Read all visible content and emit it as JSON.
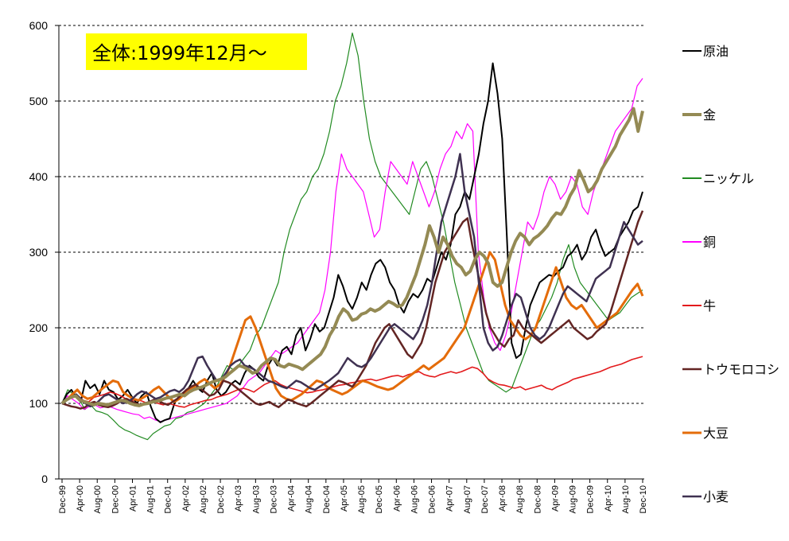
{
  "chart_data": {
    "type": "line",
    "title": "全体:1999年12月～",
    "ylim": [
      0,
      600
    ],
    "yticks": [
      0,
      100,
      200,
      300,
      400,
      500,
      600
    ],
    "grid": "horizontal dashed",
    "legend_placement": "right",
    "x_start": "Dec-99",
    "x_tick_labels": [
      "Dec-99",
      "Apr-00",
      "Aug-00",
      "Dec-00",
      "Apr-01",
      "Aug-01",
      "Dec-01",
      "Apr-02",
      "Aug-02",
      "Dec-02",
      "Apr-03",
      "Aug-03",
      "Dec-03",
      "Apr-04",
      "Aug-04",
      "Dec-04",
      "Apr-05",
      "Aug-05",
      "Dec-05",
      "Apr-06",
      "Aug-06",
      "Dec-06",
      "Apr-07",
      "Aug-07",
      "Dec-07",
      "Apr-08",
      "Aug-08",
      "Dec-08",
      "Apr-09",
      "Aug-09",
      "Dec-09",
      "Apr-10",
      "Aug-10",
      "Dec-10"
    ],
    "series": [
      {
        "name": "原油",
        "color": "#000000",
        "width": 2,
        "values": [
          100,
          112,
          118,
          108,
          102,
          130,
          120,
          125,
          112,
          130,
          118,
          115,
          105,
          110,
          118,
          108,
          100,
          110,
          115,
          95,
          80,
          75,
          78,
          80,
          100,
          110,
          115,
          120,
          130,
          120,
          115,
          130,
          140,
          118,
          110,
          115,
          125,
          130,
          125,
          140,
          150,
          145,
          135,
          130,
          150,
          160,
          150,
          170,
          175,
          165,
          190,
          200,
          170,
          185,
          205,
          195,
          200,
          220,
          240,
          270,
          255,
          235,
          225,
          240,
          260,
          250,
          270,
          285,
          290,
          280,
          260,
          250,
          230,
          220,
          235,
          245,
          240,
          250,
          265,
          260,
          280,
          300,
          290,
          310,
          350,
          360,
          380,
          370,
          400,
          430,
          470,
          500,
          550,
          510,
          450,
          320,
          180,
          160,
          165,
          200,
          230,
          245,
          260,
          265,
          270,
          268,
          275,
          280,
          295,
          300,
          310,
          290,
          300,
          320,
          330,
          310,
          295,
          300,
          305,
          320,
          330,
          340,
          355,
          360,
          380
        ]
      },
      {
        "name": "金",
        "color": "#948A54",
        "width": 4,
        "values": [
          100,
          105,
          108,
          110,
          104,
          102,
          100,
          98,
          100,
          99,
          98,
          100,
          102,
          104,
          103,
          100,
          98,
          97,
          99,
          100,
          102,
          103,
          105,
          107,
          108,
          110,
          112,
          110,
          115,
          118,
          120,
          122,
          125,
          128,
          130,
          132,
          135,
          140,
          145,
          150,
          148,
          145,
          140,
          142,
          150,
          155,
          160,
          158,
          150,
          148,
          152,
          150,
          148,
          145,
          150,
          155,
          160,
          165,
          175,
          190,
          200,
          215,
          225,
          220,
          210,
          212,
          218,
          220,
          225,
          222,
          225,
          230,
          235,
          232,
          228,
          230,
          240,
          255,
          270,
          290,
          310,
          335,
          320,
          300,
          320,
          310,
          295,
          285,
          280,
          270,
          275,
          290,
          300,
          295,
          285,
          260,
          255,
          260,
          280,
          300,
          315,
          325,
          320,
          310,
          318,
          322,
          328,
          335,
          345,
          352,
          350,
          360,
          375,
          385,
          408,
          395,
          380,
          385,
          395,
          410,
          420,
          430,
          440,
          455,
          465,
          475,
          490,
          460,
          487
        ]
      },
      {
        "name": "ニッケル",
        "color": "#228B22",
        "width": 1.2,
        "values": [
          100,
          118,
          112,
          106,
          92,
          98,
          90,
          88,
          85,
          78,
          70,
          65,
          62,
          58,
          55,
          52,
          60,
          65,
          70,
          72,
          80,
          82,
          88,
          90,
          95,
          100,
          110,
          120,
          135,
          150,
          145,
          150,
          160,
          170,
          190,
          200,
          220,
          240,
          260,
          300,
          330,
          350,
          370,
          380,
          400,
          410,
          430,
          460,
          500,
          520,
          550,
          590,
          560,
          500,
          450,
          420,
          400,
          390,
          380,
          370,
          360,
          350,
          380,
          410,
          420,
          400,
          370,
          340,
          300,
          260,
          230,
          200,
          180,
          160,
          140,
          130,
          125,
          120,
          115,
          120,
          140,
          160,
          180,
          200,
          210,
          225,
          240,
          260,
          290,
          310,
          280,
          260,
          250,
          240,
          230,
          220,
          210,
          215,
          220,
          230,
          240,
          245,
          250
        ]
      },
      {
        "name": "銅",
        "color": "#FF00FF",
        "width": 1.2,
        "values": [
          100,
          110,
          105,
          100,
          92,
          96,
          98,
          94,
          96,
          95,
          92,
          90,
          88,
          86,
          85,
          80,
          82,
          78,
          76,
          78,
          80,
          82,
          84,
          86,
          88,
          90,
          92,
          94,
          96,
          98,
          100,
          105,
          110,
          120,
          130,
          135,
          140,
          150,
          160,
          170,
          165,
          170,
          175,
          180,
          190,
          200,
          210,
          220,
          250,
          300,
          380,
          430,
          410,
          400,
          390,
          380,
          350,
          320,
          330,
          380,
          420,
          410,
          400,
          390,
          420,
          400,
          380,
          360,
          380,
          410,
          430,
          440,
          460,
          450,
          470,
          460,
          300,
          240,
          200,
          180,
          170,
          190,
          220,
          260,
          300,
          340,
          330,
          350,
          380,
          400,
          390,
          370,
          380,
          400,
          390,
          360,
          350,
          380,
          400,
          420,
          440,
          460,
          470,
          480,
          490,
          520,
          530
        ]
      },
      {
        "name": "牛",
        "color": "#E31A1C",
        "width": 1.6,
        "values": [
          100,
          105,
          108,
          110,
          104,
          102,
          108,
          110,
          112,
          115,
          113,
          110,
          106,
          104,
          105,
          103,
          100,
          102,
          100,
          98,
          100,
          98,
          96,
          95,
          98,
          100,
          102,
          104,
          105,
          108,
          110,
          112,
          115,
          118,
          120,
          118,
          115,
          120,
          125,
          128,
          130,
          125,
          122,
          120,
          118,
          116,
          114,
          115,
          117,
          118,
          120,
          122,
          124,
          125,
          127,
          128,
          130,
          131,
          132,
          130,
          132,
          134,
          136,
          137,
          135,
          138,
          140,
          142,
          138,
          136,
          135,
          138,
          140,
          142,
          140,
          142,
          145,
          148,
          146,
          140,
          132,
          128,
          125,
          124,
          122,
          120,
          122,
          118,
          120,
          122,
          124,
          120,
          118,
          122,
          125,
          128,
          132,
          134,
          136,
          138,
          140,
          142,
          145,
          148,
          150,
          152,
          155,
          158,
          160,
          162
        ]
      },
      {
        "name": "トウモロコシ",
        "color": "#632523",
        "width": 2.5,
        "values": [
          100,
          98,
          96,
          95,
          93,
          95,
          100,
          102,
          98,
          96,
          95,
          97,
          100,
          104,
          106,
          103,
          100,
          98,
          100,
          102,
          105,
          103,
          100,
          98,
          102,
          106,
          112,
          118,
          122,
          125,
          120,
          115,
          110,
          112,
          118,
          130,
          128,
          125,
          120,
          115,
          110,
          105,
          100,
          98,
          100,
          102,
          98,
          95,
          100,
          105,
          103,
          100,
          98,
          96,
          100,
          105,
          110,
          115,
          120,
          125,
          130,
          128,
          125,
          122,
          130,
          140,
          150,
          165,
          180,
          190,
          200,
          205,
          195,
          185,
          175,
          165,
          160,
          170,
          180,
          200,
          230,
          260,
          280,
          300,
          310,
          320,
          330,
          340,
          345,
          310,
          280,
          250,
          220,
          200,
          190,
          180,
          175,
          185,
          190,
          210,
          200,
          195,
          190,
          185,
          180,
          185,
          190,
          195,
          200,
          205,
          210,
          200,
          195,
          190,
          185,
          188,
          195,
          200,
          205,
          220,
          240,
          260,
          280,
          300,
          320,
          340,
          355
        ]
      },
      {
        "name": "大豆",
        "color": "#E46C0A",
        "width": 3,
        "values": [
          100,
          105,
          112,
          118,
          110,
          106,
          108,
          114,
          120,
          125,
          130,
          128,
          115,
          110,
          106,
          104,
          108,
          112,
          118,
          122,
          115,
          108,
          102,
          106,
          112,
          118,
          122,
          128,
          132,
          126,
          120,
          125,
          135,
          150,
          170,
          190,
          210,
          215,
          200,
          180,
          160,
          140,
          120,
          110,
          106,
          104,
          108,
          112,
          118,
          124,
          130,
          128,
          122,
          118,
          115,
          112,
          115,
          120,
          125,
          130,
          128,
          125,
          122,
          120,
          118,
          120,
          125,
          130,
          135,
          140,
          145,
          150,
          145,
          150,
          155,
          160,
          170,
          180,
          190,
          200,
          220,
          240,
          260,
          280,
          300,
          290,
          260,
          230,
          210,
          200,
          190,
          185,
          190,
          200,
          220,
          240,
          260,
          280,
          260,
          240,
          230,
          225,
          230,
          220,
          210,
          200,
          205,
          210,
          215,
          220,
          230,
          240,
          250,
          258,
          242
        ]
      },
      {
        "name": "小麦",
        "color": "#3F3151",
        "width": 2.5,
        "values": [
          100,
          104,
          108,
          112,
          106,
          100,
          96,
          98,
          104,
          110,
          112,
          108,
          104,
          100,
          102,
          106,
          112,
          116,
          114,
          110,
          106,
          108,
          112,
          116,
          118,
          115,
          120,
          130,
          145,
          160,
          162,
          150,
          140,
          130,
          132,
          140,
          150,
          155,
          158,
          150,
          148,
          145,
          140,
          135,
          130,
          128,
          125,
          122,
          120,
          125,
          130,
          128,
          124,
          120,
          118,
          122,
          126,
          130,
          135,
          140,
          150,
          160,
          155,
          150,
          148,
          152,
          160,
          170,
          180,
          190,
          200,
          205,
          200,
          195,
          190,
          185,
          195,
          210,
          230,
          260,
          300,
          340,
          360,
          380,
          400,
          430,
          380,
          350,
          320,
          260,
          200,
          180,
          170,
          175,
          190,
          210,
          230,
          245,
          240,
          220,
          200,
          190,
          185,
          190,
          200,
          215,
          230,
          245,
          255,
          250,
          245,
          240,
          235,
          250,
          265,
          270,
          275,
          280,
          300,
          320,
          340,
          330,
          320,
          310,
          315
        ]
      }
    ]
  }
}
